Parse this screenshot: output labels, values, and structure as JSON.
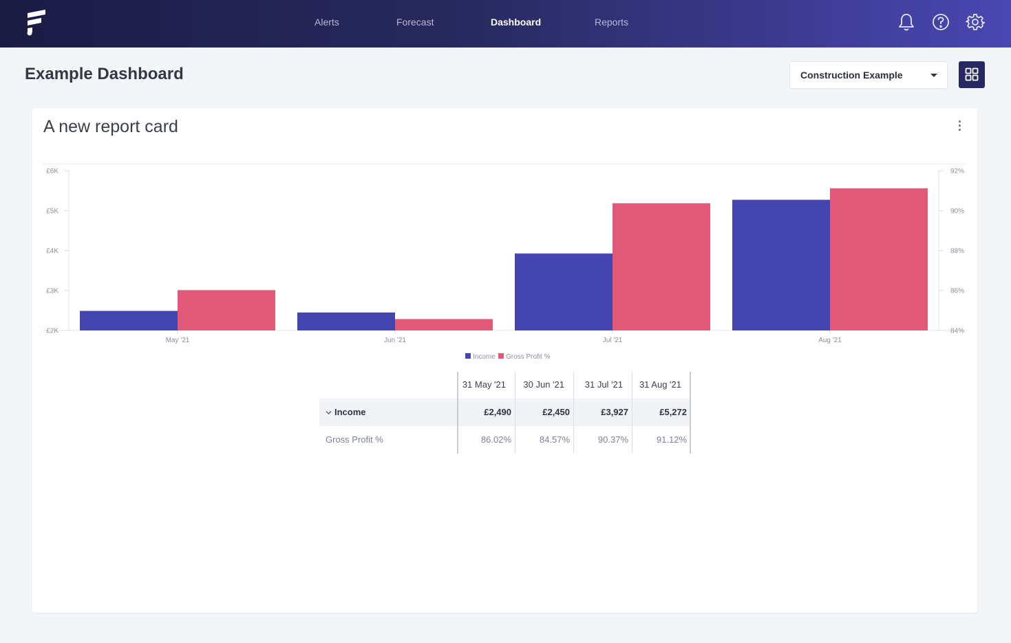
{
  "nav": {
    "items": [
      {
        "label": "Alerts",
        "active": false
      },
      {
        "label": "Forecast",
        "active": false
      },
      {
        "label": "Dashboard",
        "active": true
      },
      {
        "label": "Reports",
        "active": false
      }
    ],
    "icons": [
      "bell-icon",
      "help-icon",
      "gear-icon"
    ]
  },
  "header": {
    "title": "Example Dashboard",
    "company_select": "Construction Example"
  },
  "card": {
    "title": "A new report card"
  },
  "colors": {
    "income": "#4545b0",
    "gross_profit": "#e15878",
    "accent": "#272964"
  },
  "chart_data": {
    "type": "bar",
    "categories": [
      "May '21",
      "Jun '21",
      "Jul '21",
      "Aug '21"
    ],
    "series": [
      {
        "name": "Income",
        "axis": "left",
        "values": [
          2490,
          2450,
          3927,
          5272
        ]
      },
      {
        "name": "Gross Profit %",
        "axis": "right",
        "values": [
          86.02,
          84.57,
          90.37,
          91.12
        ]
      }
    ],
    "y_left": {
      "ticks": [
        "£2K",
        "£3K",
        "£4K",
        "£5K",
        "£6K"
      ],
      "range": [
        2000,
        6000
      ]
    },
    "y_right": {
      "ticks": [
        "84%",
        "86%",
        "88%",
        "90%",
        "92%"
      ],
      "range": [
        84,
        92
      ]
    },
    "legend": "bottom-center",
    "grid": false
  },
  "table": {
    "columns": [
      "31 May '21",
      "30 Jun '21",
      "31 Jul '21",
      "31 Aug '21"
    ],
    "rows": [
      {
        "label": "Income",
        "values": [
          "£2,490",
          "£2,450",
          "£3,927",
          "£5,272"
        ]
      },
      {
        "label": "Gross Profit %",
        "values": [
          "86.02%",
          "84.57%",
          "90.37%",
          "91.12%"
        ]
      }
    ]
  }
}
